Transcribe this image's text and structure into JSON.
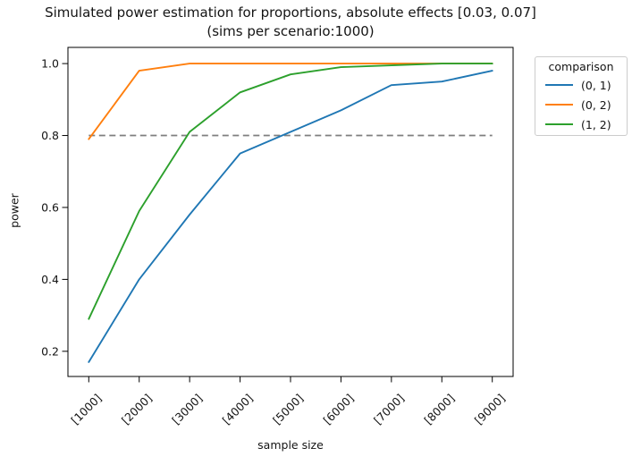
{
  "chart_data": {
    "type": "line",
    "title": "Simulated power estimation for proportions, absolute effects [0.03, 0.07]",
    "subtitle": "(sims per scenario:1000)",
    "xlabel": "sample size",
    "ylabel": "power",
    "categories": [
      "[1000]",
      "[2000]",
      "[3000]",
      "[4000]",
      "[5000]",
      "[6000]",
      "[7000]",
      "[8000]",
      "[9000]"
    ],
    "series": [
      {
        "name": "(0, 1)",
        "color": "#1f77b4",
        "values": [
          0.17,
          0.4,
          0.58,
          0.75,
          0.81,
          0.87,
          0.94,
          0.95,
          0.98
        ]
      },
      {
        "name": "(0, 2)",
        "color": "#ff7f0e",
        "values": [
          0.79,
          0.98,
          1.0,
          1.0,
          1.0,
          1.0,
          1.0,
          1.0,
          1.0
        ]
      },
      {
        "name": "(1, 2)",
        "color": "#2ca02c",
        "values": [
          0.29,
          0.59,
          0.81,
          0.92,
          0.97,
          0.99,
          0.995,
          1.0,
          1.0
        ]
      }
    ],
    "reference_line": {
      "y": 0.8,
      "style": "dashed",
      "color": "#7f7f7f"
    },
    "y_ticks": [
      0.2,
      0.4,
      0.6,
      0.8,
      1.0
    ],
    "y_tick_labels": [
      "0.2",
      "0.4",
      "0.6",
      "0.8",
      "1.0"
    ],
    "ylim": [
      0.13,
      1.045
    ],
    "legend": {
      "title": "comparison",
      "position": "outside-upper-right"
    },
    "grid": false
  }
}
